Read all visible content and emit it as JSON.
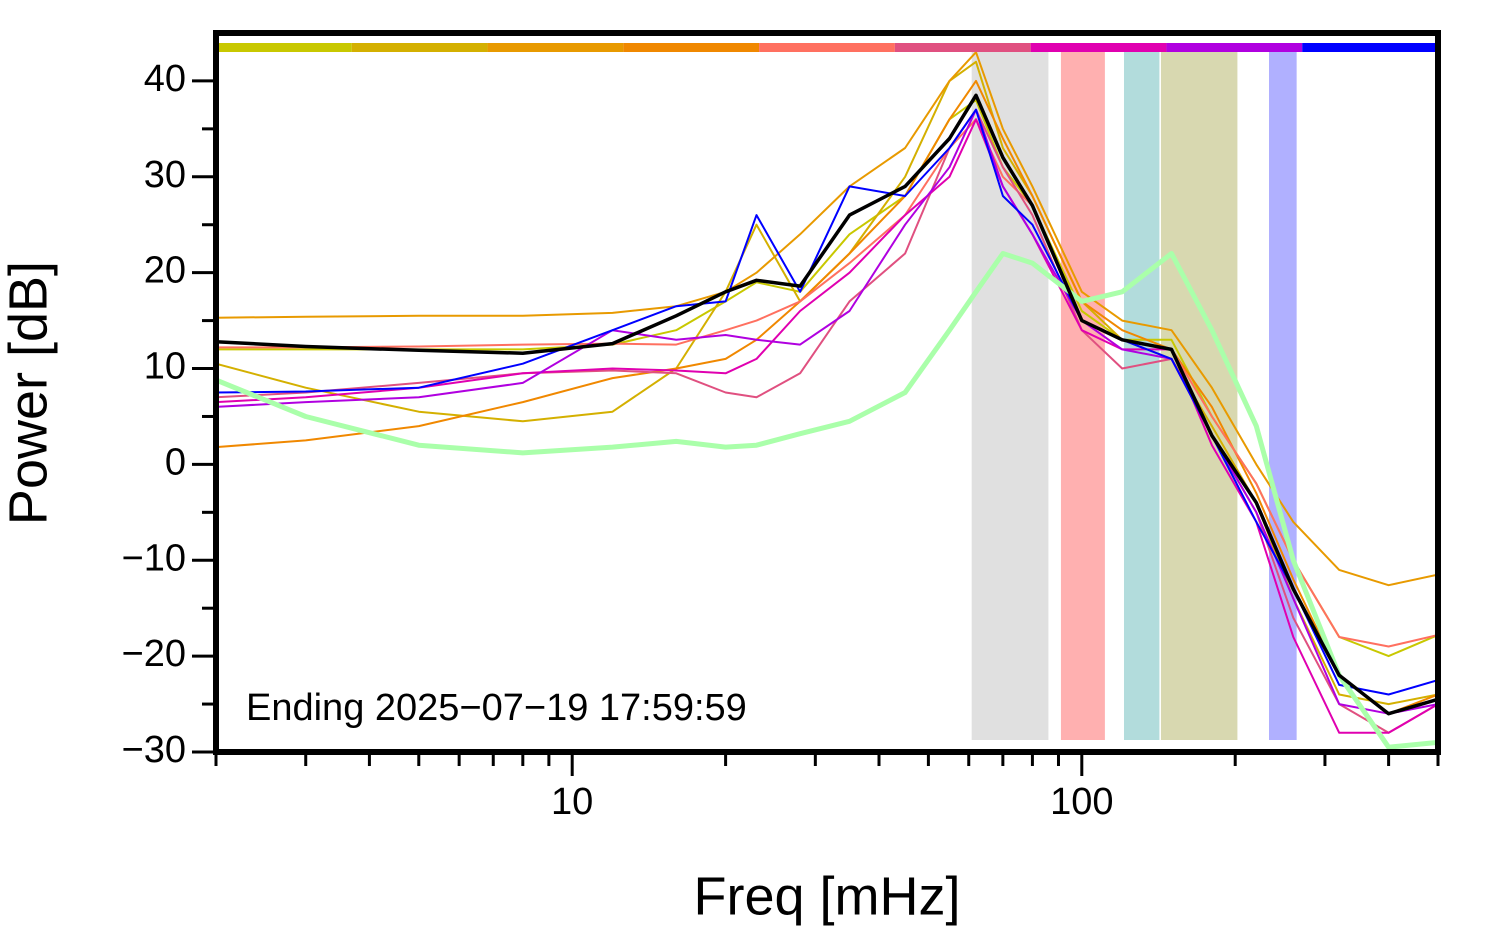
{
  "chart_data": {
    "type": "line",
    "x_label": "Freq [mHz]",
    "y_label": "Power [dB]",
    "annotation": "Ending 2025−07−19 17:59:59",
    "log_x": true,
    "xlim": [
      2,
      500
    ],
    "ylim": [
      -30,
      45
    ],
    "xticks": [
      10,
      100
    ],
    "xminorticks": [
      2,
      3,
      4,
      5,
      6,
      7,
      8,
      9,
      20,
      30,
      40,
      50,
      60,
      70,
      80,
      90,
      200,
      300,
      400,
      500
    ],
    "yticks": [
      {
        "value": -30,
        "label": "−30"
      },
      {
        "value": -20,
        "label": "−20"
      },
      {
        "value": -10,
        "label": "−10"
      },
      0,
      10,
      20,
      30,
      40
    ],
    "yminorticks": [
      -25,
      -15,
      -5,
      5,
      15,
      25,
      35
    ],
    "bands": [
      {
        "x": [
          60.8,
          86
        ],
        "color": "#e0e0e0"
      },
      {
        "x": [
          91,
          111
        ],
        "color": "#ffb0b0"
      },
      {
        "x": [
          121,
          142
        ],
        "color": "#b2dcdc"
      },
      {
        "x": [
          143,
          202
        ],
        "color": "#d8d8b0"
      },
      {
        "x": [
          233,
          264
        ],
        "color": "#b0b0ff"
      }
    ],
    "x": [
      2,
      3,
      5,
      8,
      12,
      16,
      20,
      23,
      28,
      35,
      45,
      55,
      62,
      70,
      80,
      100,
      120,
      150,
      180,
      220,
      260,
      320,
      400,
      500
    ],
    "series": [
      {
        "color": "#c8c800",
        "width": 2,
        "values": [
          12,
          12,
          12,
          12,
          12.5,
          14,
          17,
          19,
          18,
          24,
          28,
          36,
          38,
          31,
          27,
          16,
          13,
          13,
          5,
          -2,
          -10,
          -18,
          -20,
          -17.8
        ]
      },
      {
        "color": "#d4b000",
        "width": 2,
        "values": [
          10.5,
          8,
          5.5,
          4.5,
          5.5,
          10,
          18,
          25,
          17,
          22,
          30,
          40,
          42,
          33,
          28,
          17,
          13,
          11,
          4,
          -4,
          -14,
          -24,
          -25,
          -24
        ]
      },
      {
        "color": "#e89a00",
        "width": 2,
        "values": [
          15.3,
          15.4,
          15.5,
          15.5,
          15.8,
          16.5,
          18,
          20,
          24,
          29,
          33,
          40,
          43,
          35,
          29,
          18,
          15,
          14,
          8,
          0,
          -6,
          -11,
          -12.6,
          -11.5
        ]
      },
      {
        "color": "#f08800",
        "width": 2,
        "values": [
          1.8,
          2.5,
          4,
          6.5,
          9,
          10,
          11,
          13,
          17,
          22,
          28,
          36,
          40,
          34,
          28,
          17,
          14,
          12,
          6,
          -3,
          -12,
          -22,
          -26,
          -24
        ]
      },
      {
        "color": "#ff7060",
        "width": 2,
        "values": [
          12.2,
          12.2,
          12.3,
          12.5,
          12.6,
          12.5,
          14,
          15,
          17,
          21,
          26,
          33,
          36,
          30,
          27,
          15,
          13,
          12,
          5,
          -2,
          -10,
          -18,
          -19,
          -17.8
        ]
      },
      {
        "color": "#e05080",
        "width": 2,
        "values": [
          7,
          7.5,
          8.5,
          9.5,
          9.8,
          9.5,
          7.5,
          7,
          9.5,
          17,
          22,
          33,
          37,
          31,
          26,
          14,
          10,
          11,
          3,
          -5,
          -16,
          -25,
          -28,
          -25
        ]
      },
      {
        "color": "#e000b0",
        "width": 2,
        "values": [
          6.5,
          7,
          8,
          9.5,
          10,
          9.8,
          9.5,
          11,
          16,
          20,
          26,
          30,
          36,
          29,
          24,
          14,
          12,
          12,
          2,
          -6,
          -18,
          -28,
          -28,
          -25
        ]
      },
      {
        "color": "#b000e0",
        "width": 2,
        "values": [
          6,
          6.5,
          7,
          8.5,
          14,
          13,
          13.5,
          13,
          12.5,
          16,
          25,
          31,
          37,
          29,
          24,
          15,
          12,
          11,
          3,
          -5,
          -14,
          -25,
          -26,
          -25
        ]
      },
      {
        "color": "#0000ff",
        "width": 2,
        "values": [
          7.5,
          7.6,
          8,
          10.5,
          14,
          16.5,
          17,
          26,
          18,
          29,
          28,
          33,
          37,
          28,
          25,
          15,
          13,
          11,
          3,
          -6,
          -13,
          -23,
          -24,
          -22.5
        ]
      },
      {
        "color": "#aaffaa",
        "width": 5,
        "values": [
          8.8,
          5,
          2,
          1.2,
          1.8,
          2.4,
          1.8,
          2,
          3.2,
          4.5,
          7.5,
          14,
          18,
          22,
          21,
          17,
          18,
          22,
          14,
          4,
          -10,
          -22,
          -29.5,
          -29
        ]
      },
      {
        "color": "#000000",
        "width": 3.5,
        "values": [
          12.8,
          12.3,
          11.9,
          11.6,
          12.6,
          15.5,
          18,
          19.2,
          18.6,
          26,
          29,
          34,
          38.5,
          32,
          27,
          15,
          13,
          12,
          3,
          -4,
          -13,
          -22,
          -26,
          -24.5
        ]
      }
    ],
    "color_bar_series": [
      0,
      1,
      2,
      3,
      4,
      5,
      6,
      7,
      8
    ]
  }
}
